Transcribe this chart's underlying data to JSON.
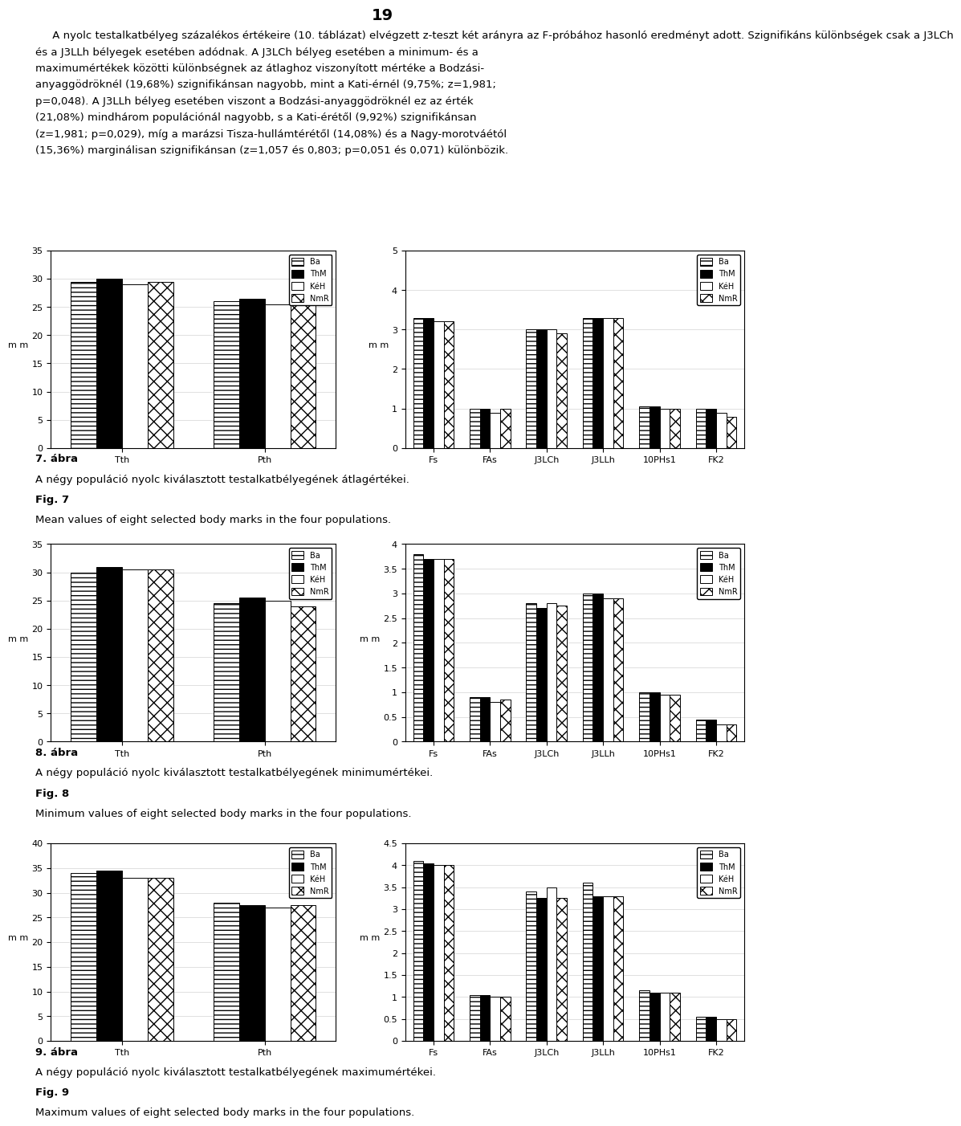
{
  "page_number": "19",
  "main_text_lines": [
    "     A nyolc testalkatbélyeg százalékos értékeire (10. táblázat) elvégzett z-teszt két arányra az F-próbához hasonló eredményt adott. Szignifikáns különbségek csak a J3LCh",
    "és a J3LLh bélyegek esetében adódnak. A J3LCh bélyeg esetében a minimum- és a",
    "maximumértékek közötti különbségnek az átlaghoz viszonyított mértéke a Bodzási-",
    "anyaggödröknél (19,68%) szignifikánsan nagyobb, mint a Kati-érnél (9,75%; z=1,981;",
    "p=0,048). A J3LLh bélyeg esetében viszont a Bodzási-anyaggödröknél ez az érték",
    "(21,08%) mindhárom populációnál nagyobb, s a Kati-érétől (9,92%) szignifikánsan",
    "(z=1,981; p=0,029), míg a marázsi Tisza-hullámtérétől (14,08%) és a Nagy-morotváétól",
    "(15,36%) marginálisan szignifikánsan (z=1,057 és 0,803; p=0,051 és 0,071) különbözik."
  ],
  "fig7": {
    "caption_bold": "7. ábra",
    "caption_hu": "A négy populáció nyolc kiválasztott testalkatbélyegének átlagértékei.",
    "caption_en_bold": "Fig. 7",
    "caption_en": "Mean values of eight selected body marks in the four populations.",
    "left": {
      "categories": [
        "Tth",
        "Pth"
      ],
      "ylim": [
        0,
        35
      ],
      "yticks": [
        0,
        5,
        10,
        15,
        20,
        25,
        30,
        35
      ],
      "ylabel": "m m",
      "series": {
        "Ba": [
          29.5,
          26.0
        ],
        "ThM": [
          30.0,
          26.5
        ],
        "KéH": [
          29.0,
          25.5
        ],
        "NmR": [
          29.5,
          26.0
        ]
      }
    },
    "right": {
      "categories": [
        "Fs",
        "FAs",
        "J3LCh",
        "J3LLh",
        "10PHs1",
        "FK2"
      ],
      "ylim": [
        0,
        5
      ],
      "yticks": [
        0,
        1,
        2,
        3,
        4,
        5
      ],
      "ylabel": "m m",
      "series": {
        "Ba": [
          3.3,
          1.0,
          3.0,
          3.3,
          1.05,
          1.0
        ],
        "ThM": [
          3.3,
          1.0,
          3.0,
          3.3,
          1.05,
          1.0
        ],
        "KéH": [
          3.2,
          0.9,
          3.0,
          3.3,
          1.0,
          0.9
        ],
        "NmR": [
          3.2,
          1.0,
          2.9,
          3.3,
          1.0,
          0.8
        ]
      }
    }
  },
  "fig8": {
    "caption_bold": "8. ábra",
    "caption_hu": "A négy populáció nyolc kiválasztott testalkatbélyegének minimumértékei.",
    "caption_en_bold": "Fig. 8",
    "caption_en": "Minimum values of eight selected body marks in the four populations.",
    "left": {
      "categories": [
        "Tth",
        "Pth"
      ],
      "ylim": [
        0,
        35
      ],
      "yticks": [
        0,
        5,
        10,
        15,
        20,
        25,
        30,
        35
      ],
      "ylabel": "m m",
      "series": {
        "Ba": [
          30.0,
          24.5
        ],
        "ThM": [
          31.0,
          25.5
        ],
        "KéH": [
          30.5,
          25.0
        ],
        "NmR": [
          30.5,
          24.0
        ]
      }
    },
    "right": {
      "categories": [
        "Fs",
        "FAs",
        "J3LCh",
        "J3LLh",
        "10PHs1",
        "FK2"
      ],
      "ylim": [
        0.0,
        4.0
      ],
      "yticks": [
        0.0,
        0.5,
        1.0,
        1.5,
        2.0,
        2.5,
        3.0,
        3.5,
        4.0
      ],
      "ylabel": "m m",
      "series": {
        "Ba": [
          3.8,
          0.9,
          2.8,
          3.0,
          1.0,
          0.45
        ],
        "ThM": [
          3.7,
          0.9,
          2.7,
          3.0,
          1.0,
          0.45
        ],
        "KéH": [
          3.7,
          0.8,
          2.8,
          2.9,
          0.95,
          0.35
        ],
        "NmR": [
          3.7,
          0.85,
          2.75,
          2.9,
          0.95,
          0.35
        ]
      }
    }
  },
  "fig9": {
    "caption_bold": "9. ábra",
    "caption_hu": "A négy populáció nyolc kiválasztott testalkatbélyegének maximumértékei.",
    "caption_en_bold": "Fig. 9",
    "caption_en": "Maximum values of eight selected body marks in the four populations.",
    "left": {
      "categories": [
        "Tth",
        "Pth"
      ],
      "ylim": [
        0,
        40
      ],
      "yticks": [
        0,
        5,
        10,
        15,
        20,
        25,
        30,
        35,
        40
      ],
      "ylabel": "m m",
      "series": {
        "Ba": [
          34.0,
          28.0
        ],
        "ThM": [
          34.5,
          27.5
        ],
        "KéH": [
          33.0,
          27.0
        ],
        "NmR": [
          33.0,
          27.5
        ]
      }
    },
    "right": {
      "categories": [
        "Fs",
        "FAs",
        "J3LCh",
        "J3LLh",
        "10PHs1",
        "FK2"
      ],
      "ylim": [
        0.0,
        4.5
      ],
      "yticks": [
        0.0,
        0.5,
        1.0,
        1.5,
        2.0,
        2.5,
        3.0,
        3.5,
        4.0,
        4.5
      ],
      "ylabel": "m m",
      "series": {
        "Ba": [
          4.1,
          1.05,
          3.4,
          3.6,
          1.15,
          0.55
        ],
        "ThM": [
          4.05,
          1.05,
          3.25,
          3.3,
          1.1,
          0.55
        ],
        "KéH": [
          4.0,
          1.0,
          3.5,
          3.3,
          1.1,
          0.5
        ],
        "NmR": [
          4.0,
          1.0,
          3.25,
          3.3,
          1.1,
          0.5
        ]
      }
    }
  },
  "font_size_title": 14,
  "font_size_body": 9.5,
  "font_size_caption": 9.5,
  "font_size_axis": 8,
  "font_size_legend": 7
}
